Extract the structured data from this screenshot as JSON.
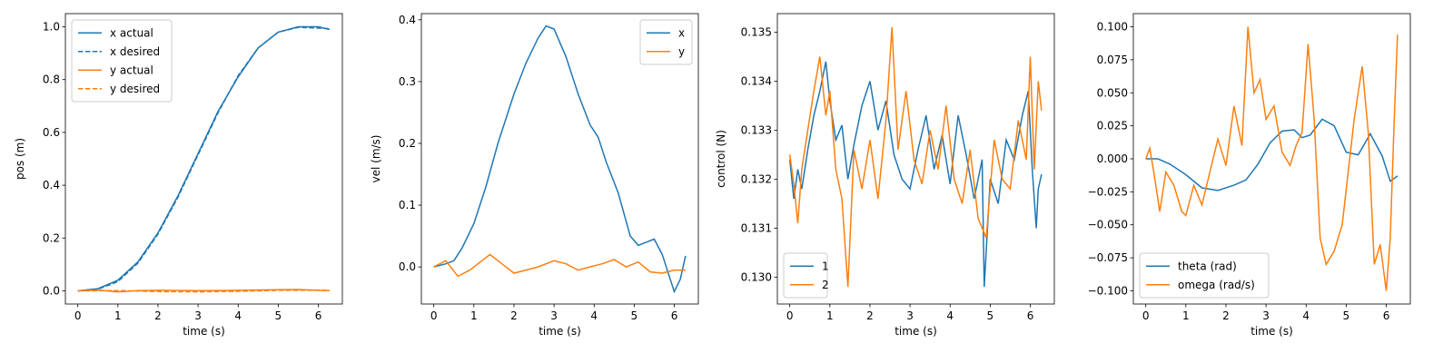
{
  "colors": {
    "blue": "#1f77b4",
    "orange": "#ff7f0e"
  },
  "chart_data": [
    {
      "type": "line",
      "xlabel": "time (s)",
      "ylabel": "pos (m)",
      "xlim": [
        -0.31,
        6.6
      ],
      "ylim": [
        -0.05,
        1.05
      ],
      "xticks": [
        0,
        1,
        2,
        3,
        4,
        5,
        6
      ],
      "yticks": [
        0.0,
        0.2,
        0.4,
        0.6,
        0.8,
        1.0
      ],
      "ytick_labels": [
        "0.0",
        "0.2",
        "0.4",
        "0.6",
        "0.8",
        "1.0"
      ],
      "legend_loc": "upper-left",
      "series": [
        {
          "name": "x actual",
          "color": "#1f77b4",
          "dash": false,
          "x": [
            0,
            0.5,
            1,
            1.5,
            2,
            2.5,
            3,
            3.5,
            4,
            4.5,
            5,
            5.5,
            6,
            6.28
          ],
          "y": [
            0,
            0.008,
            0.04,
            0.11,
            0.22,
            0.36,
            0.52,
            0.68,
            0.81,
            0.92,
            0.98,
            1.0,
            1.0,
            0.99
          ]
        },
        {
          "name": "x desired",
          "color": "#1f77b4",
          "dash": true,
          "x": [
            0,
            0.5,
            1,
            1.5,
            2,
            2.5,
            3,
            3.5,
            4,
            4.5,
            5,
            5.5,
            6,
            6.28
          ],
          "y": [
            0,
            0.006,
            0.035,
            0.105,
            0.215,
            0.355,
            0.515,
            0.675,
            0.815,
            0.92,
            0.98,
            0.998,
            0.995,
            0.993
          ]
        },
        {
          "name": "y actual",
          "color": "#ff7f0e",
          "dash": false,
          "x": [
            0,
            0.5,
            1,
            1.5,
            2,
            3,
            4,
            5,
            5.5,
            6,
            6.28
          ],
          "y": [
            0,
            0.003,
            -0.004,
            0.001,
            0.002,
            0.001,
            0.002,
            0.004,
            0.005,
            0.002,
            0.001
          ]
        },
        {
          "name": "y desired",
          "color": "#ff7f0e",
          "dash": true,
          "x": [
            0,
            1,
            2,
            3,
            4,
            5,
            6,
            6.28
          ],
          "y": [
            0,
            0.001,
            -0.003,
            -0.004,
            -0.002,
            0.002,
            0.002,
            0.002
          ]
        }
      ]
    },
    {
      "type": "line",
      "xlabel": "time (s)",
      "ylabel": "vel (m/s)",
      "xlim": [
        -0.31,
        6.6
      ],
      "ylim": [
        -0.06,
        0.41
      ],
      "xticks": [
        0,
        1,
        2,
        3,
        4,
        5,
        6
      ],
      "yticks": [
        0.0,
        0.1,
        0.2,
        0.3,
        0.4
      ],
      "ytick_labels": [
        "0.0",
        "0.1",
        "0.2",
        "0.3",
        "0.4"
      ],
      "legend_loc": "upper-right",
      "series": [
        {
          "name": "x",
          "color": "#1f77b4",
          "dash": false,
          "x": [
            0,
            0.3,
            0.5,
            0.7,
            1.0,
            1.3,
            1.6,
            2.0,
            2.3,
            2.6,
            2.8,
            3.0,
            3.3,
            3.6,
            3.9,
            4.1,
            4.3,
            4.6,
            4.9,
            5.1,
            5.3,
            5.5,
            5.7,
            5.9,
            6.0,
            6.15,
            6.28
          ],
          "y": [
            0,
            0.005,
            0.01,
            0.03,
            0.07,
            0.13,
            0.2,
            0.28,
            0.33,
            0.37,
            0.39,
            0.385,
            0.34,
            0.28,
            0.23,
            0.21,
            0.17,
            0.12,
            0.05,
            0.035,
            0.04,
            0.045,
            0.02,
            -0.02,
            -0.04,
            -0.02,
            0.018
          ]
        },
        {
          "name": "y",
          "color": "#ff7f0e",
          "dash": false,
          "x": [
            0,
            0.3,
            0.6,
            0.9,
            1.2,
            1.4,
            1.7,
            2.0,
            2.3,
            2.6,
            3.0,
            3.3,
            3.6,
            3.9,
            4.2,
            4.5,
            4.8,
            5.1,
            5.4,
            5.7,
            6.0,
            6.28
          ],
          "y": [
            0,
            0.01,
            -0.015,
            -0.005,
            0.01,
            0.02,
            0.005,
            -0.01,
            -0.005,
            0.0,
            0.01,
            0.005,
            -0.005,
            0.0,
            0.005,
            0.012,
            0.0,
            0.008,
            -0.008,
            -0.01,
            -0.005,
            -0.005
          ]
        }
      ]
    },
    {
      "type": "line",
      "xlabel": "time (s)",
      "ylabel": "control (N)",
      "xlim": [
        -0.31,
        6.6
      ],
      "ylim": [
        0.12945,
        0.13538
      ],
      "xticks": [
        0,
        1,
        2,
        3,
        4,
        5,
        6
      ],
      "yticks": [
        0.13,
        0.131,
        0.132,
        0.133,
        0.134,
        0.135
      ],
      "ytick_labels": [
        "0.130",
        "0.131",
        "0.132",
        "0.133",
        "0.134",
        "0.135"
      ],
      "legend_loc": "lower-left",
      "series": [
        {
          "name": "1",
          "color": "#1f77b4",
          "dash": false,
          "x": [
            0,
            0.1,
            0.2,
            0.3,
            0.45,
            0.6,
            0.75,
            0.9,
            1.0,
            1.15,
            1.3,
            1.45,
            1.6,
            1.8,
            2.0,
            2.2,
            2.4,
            2.6,
            2.8,
            3.0,
            3.2,
            3.4,
            3.6,
            3.8,
            4.0,
            4.2,
            4.4,
            4.6,
            4.8,
            4.85,
            5.0,
            5.2,
            5.4,
            5.6,
            5.8,
            5.95,
            6.05,
            6.15,
            6.2,
            6.28
          ],
          "y": [
            0.1324,
            0.1316,
            0.1322,
            0.1318,
            0.1326,
            0.1333,
            0.1338,
            0.1344,
            0.1336,
            0.1328,
            0.1331,
            0.132,
            0.1327,
            0.1335,
            0.134,
            0.133,
            0.1336,
            0.1325,
            0.132,
            0.1318,
            0.1326,
            0.1333,
            0.1322,
            0.1329,
            0.1319,
            0.1333,
            0.1325,
            0.1316,
            0.1324,
            0.1298,
            0.132,
            0.1315,
            0.1328,
            0.1324,
            0.1333,
            0.1338,
            0.1322,
            0.131,
            0.1318,
            0.1321
          ]
        },
        {
          "name": "2",
          "color": "#ff7f0e",
          "dash": false,
          "x": [
            0,
            0.1,
            0.2,
            0.3,
            0.45,
            0.6,
            0.75,
            0.9,
            1.0,
            1.15,
            1.3,
            1.45,
            1.6,
            1.8,
            2.0,
            2.2,
            2.4,
            2.55,
            2.7,
            2.9,
            3.1,
            3.3,
            3.5,
            3.7,
            3.9,
            4.1,
            4.3,
            4.5,
            4.7,
            4.9,
            5.1,
            5.3,
            5.5,
            5.7,
            5.9,
            6.0,
            6.1,
            6.2,
            6.28
          ],
          "y": [
            0.1325,
            0.1319,
            0.1311,
            0.1322,
            0.133,
            0.1338,
            0.1345,
            0.1333,
            0.1338,
            0.1322,
            0.1316,
            0.1298,
            0.1326,
            0.1318,
            0.1328,
            0.1316,
            0.1332,
            0.1351,
            0.1326,
            0.1338,
            0.1324,
            0.1319,
            0.133,
            0.1322,
            0.1335,
            0.132,
            0.1315,
            0.1326,
            0.1312,
            0.1308,
            0.1328,
            0.132,
            0.1318,
            0.1332,
            0.1324,
            0.1345,
            0.1322,
            0.134,
            0.1334
          ]
        }
      ]
    },
    {
      "type": "line",
      "xlabel": "time (s)",
      "ylabel": "",
      "xlim": [
        -0.31,
        6.6
      ],
      "ylim": [
        -0.11,
        0.11
      ],
      "xticks": [
        0,
        1,
        2,
        3,
        4,
        5,
        6
      ],
      "yticks": [
        -0.1,
        -0.075,
        -0.05,
        -0.025,
        0.0,
        0.025,
        0.05,
        0.075,
        0.1
      ],
      "ytick_labels": [
        "−0.100",
        "−0.075",
        "−0.050",
        "−0.025",
        "0.000",
        "0.025",
        "0.050",
        "0.075",
        "0.100"
      ],
      "legend_loc": "lower-left",
      "series": [
        {
          "name": "theta (rad)",
          "color": "#1f77b4",
          "dash": false,
          "x": [
            0,
            0.3,
            0.6,
            1.0,
            1.4,
            1.8,
            2.2,
            2.5,
            2.8,
            3.1,
            3.4,
            3.7,
            3.9,
            4.1,
            4.4,
            4.7,
            5.0,
            5.3,
            5.6,
            5.9,
            6.1,
            6.28
          ],
          "y": [
            0,
            0.0,
            -0.004,
            -0.012,
            -0.022,
            -0.024,
            -0.02,
            -0.016,
            -0.004,
            0.012,
            0.021,
            0.022,
            0.016,
            0.018,
            0.03,
            0.025,
            0.005,
            0.003,
            0.019,
            0.002,
            -0.017,
            -0.013
          ]
        },
        {
          "name": "omega (rad/s)",
          "color": "#ff7f0e",
          "dash": false,
          "x": [
            0,
            0.1,
            0.2,
            0.35,
            0.5,
            0.7,
            0.9,
            1.0,
            1.2,
            1.4,
            1.6,
            1.8,
            2.0,
            2.2,
            2.4,
            2.55,
            2.7,
            2.85,
            3.0,
            3.2,
            3.4,
            3.6,
            3.75,
            3.9,
            4.05,
            4.2,
            4.35,
            4.5,
            4.7,
            4.9,
            5.05,
            5.2,
            5.4,
            5.55,
            5.7,
            5.85,
            6.0,
            6.1,
            6.2,
            6.28
          ],
          "y": [
            0,
            0.008,
            -0.01,
            -0.04,
            -0.01,
            -0.02,
            -0.04,
            -0.043,
            -0.02,
            -0.035,
            -0.01,
            0.015,
            -0.005,
            0.04,
            0.01,
            0.1,
            0.05,
            0.06,
            0.03,
            0.04,
            0.005,
            -0.005,
            0.01,
            0.02,
            0.087,
            0.03,
            -0.06,
            -0.08,
            -0.07,
            -0.05,
            -0.01,
            0.03,
            0.07,
            0.02,
            -0.08,
            -0.065,
            -0.1,
            -0.06,
            0.03,
            0.094
          ]
        }
      ]
    }
  ]
}
